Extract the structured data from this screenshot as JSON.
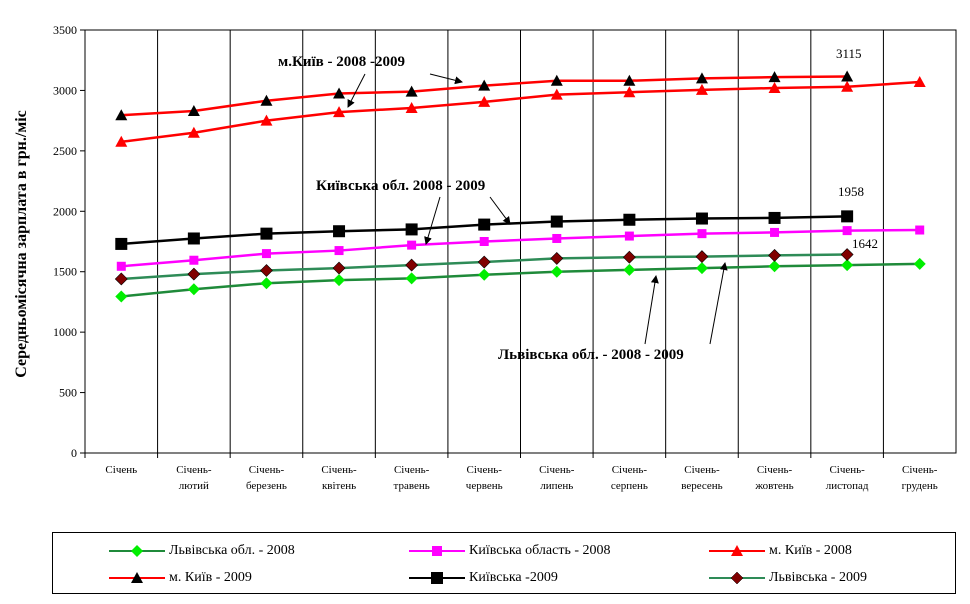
{
  "chart_data": {
    "type": "line",
    "title": "",
    "ylabel": "Середньомісячна зарплата в грн./міс",
    "xlabel": "",
    "ylim": [
      0,
      3500
    ],
    "yticks": [
      0,
      500,
      1000,
      1500,
      2000,
      2500,
      3000,
      3500
    ],
    "grid": "vertical",
    "categories": [
      [
        "Січень"
      ],
      [
        "Січень-",
        "лютий"
      ],
      [
        "Січень-",
        "березень"
      ],
      [
        "Січень-",
        "квітень"
      ],
      [
        "Січень-",
        "травень"
      ],
      [
        "Січень-",
        "червень"
      ],
      [
        "Січень-",
        "липень"
      ],
      [
        "Січень-",
        "серпень"
      ],
      [
        "Січень-",
        "вересень"
      ],
      [
        "Січень-",
        "жовтень"
      ],
      [
        "Січень-",
        "листопад"
      ],
      [
        "Січень-",
        "грудень"
      ]
    ],
    "series": [
      {
        "name": "Львівська обл. - 2008",
        "color": "#1f8a3a",
        "marker": "diamond",
        "marker_color": "#00ee00",
        "values": [
          1295,
          1355,
          1405,
          1430,
          1445,
          1475,
          1500,
          1515,
          1530,
          1545,
          1555,
          1565
        ]
      },
      {
        "name": "Київська область - 2008",
        "color": "#ff00ff",
        "marker": "square",
        "marker_color": "#ff00ff",
        "values": [
          1545,
          1595,
          1650,
          1675,
          1720,
          1750,
          1775,
          1795,
          1815,
          1825,
          1840,
          1845
        ]
      },
      {
        "name": "м. Київ - 2008",
        "color": "#ff0000",
        "marker": "triangle",
        "marker_color": "#ff0000",
        "values": [
          2575,
          2650,
          2750,
          2820,
          2855,
          2905,
          2965,
          2985,
          3005,
          3020,
          3030,
          3070
        ]
      },
      {
        "name": "м. Київ - 2009",
        "color": "#ff0000",
        "marker": "triangle",
        "marker_color": "#000000",
        "values": [
          2795,
          2830,
          2915,
          2975,
          2990,
          3040,
          3080,
          3080,
          3100,
          3110,
          3115,
          null
        ]
      },
      {
        "name": "Київська -2009",
        "color": "#000000",
        "marker": "square",
        "marker_color": "#000000",
        "values": [
          1730,
          1775,
          1815,
          1835,
          1850,
          1890,
          1915,
          1930,
          1940,
          1945,
          1958,
          null
        ]
      },
      {
        "name": "Львівська - 2009",
        "color": "#2e8b57",
        "marker": "diamond",
        "marker_color": "#800000",
        "values": [
          1440,
          1480,
          1510,
          1530,
          1555,
          1580,
          1610,
          1620,
          1625,
          1635,
          1642,
          null
        ]
      }
    ],
    "annotations": [
      {
        "text": "м.Київ - 2008 -2009"
      },
      {
        "text": "Київська обл. 2008 - 2009"
      },
      {
        "text": "Львівська обл. - 2008 - 2009"
      }
    ],
    "data_labels": [
      "3115",
      "1958",
      "1642"
    ]
  }
}
